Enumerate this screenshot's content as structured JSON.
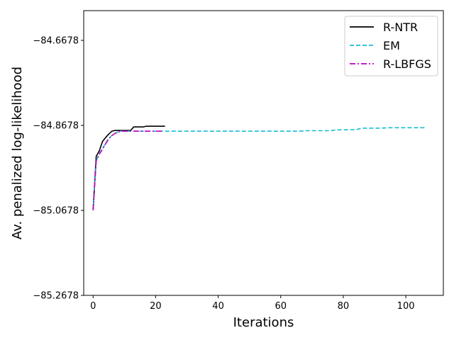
{
  "chart_data": {
    "type": "line",
    "xlabel": "Iterations",
    "ylabel": "Av. penalized log-likelihood",
    "xlim": [
      -3,
      112
    ],
    "ylim": [
      -85.2678,
      -84.5978
    ],
    "xticks": [
      0,
      20,
      40,
      60,
      80,
      100
    ],
    "yticks": [
      -85.2678,
      -85.0678,
      -84.8678,
      -84.6678
    ],
    "ytick_labels": [
      "−85.2678",
      "−85.0678",
      "−84.8678",
      "−84.6678"
    ],
    "grid": false,
    "legend_position": "top-right",
    "series": [
      {
        "name": "R-NTR",
        "color": "#000000",
        "dash": "solid",
        "x": [
          0,
          1,
          2,
          3,
          4,
          5,
          6,
          7,
          8,
          9,
          10,
          11,
          12,
          13,
          14,
          15,
          16,
          17,
          18,
          19,
          20,
          21,
          22,
          23
        ],
        "y": [
          -85.0678,
          -84.9405,
          -84.9275,
          -84.9057,
          -84.8965,
          -84.8883,
          -84.8815,
          -84.8797,
          -84.8797,
          -84.8797,
          -84.8797,
          -84.8797,
          -84.8797,
          -84.8715,
          -84.8715,
          -84.8715,
          -84.8715,
          -84.8697,
          -84.8697,
          -84.8697,
          -84.8697,
          -84.8697,
          -84.8697,
          -84.8697
        ]
      },
      {
        "name": "EM",
        "color": "#17becf",
        "dash": "dashed",
        "x": [
          0,
          1,
          2,
          3,
          4,
          5,
          6,
          7,
          8,
          9,
          10,
          12,
          14,
          20,
          30,
          40,
          50,
          60,
          66,
          68,
          72,
          76,
          78,
          80,
          84,
          86,
          90,
          92,
          95,
          100,
          106
        ],
        "y": [
          -85.0678,
          -84.9515,
          -84.9342,
          -84.9225,
          -84.9097,
          -84.8988,
          -84.8915,
          -84.8865,
          -84.8833,
          -84.8815,
          -84.8815,
          -84.8815,
          -84.8815,
          -84.8815,
          -84.8815,
          -84.8815,
          -84.8815,
          -84.8815,
          -84.8815,
          -84.8803,
          -84.8803,
          -84.8803,
          -84.8783,
          -84.8783,
          -84.8778,
          -84.8743,
          -84.8743,
          -84.8743,
          -84.8733,
          -84.8733,
          -84.8733
        ]
      },
      {
        "name": "R-LBFGS",
        "color": "#bf00bf",
        "dash": "dashdot",
        "x": [
          0,
          1,
          2,
          3,
          4,
          5,
          6,
          7,
          8,
          9,
          10,
          11,
          12,
          13,
          14,
          15,
          16,
          17,
          18,
          19,
          20,
          21,
          22
        ],
        "y": [
          -85.0678,
          -84.9515,
          -84.9357,
          -84.9242,
          -84.9112,
          -84.8998,
          -84.892,
          -84.8868,
          -84.8838,
          -84.8815,
          -84.8815,
          -84.8815,
          -84.8815,
          -84.8815,
          -84.8815,
          -84.8815,
          -84.8815,
          -84.8815,
          -84.8815,
          -84.8815,
          -84.8815,
          -84.8815,
          -84.8815
        ]
      }
    ]
  }
}
